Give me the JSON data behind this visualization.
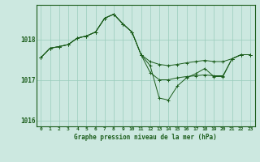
{
  "title": "Graphe pression niveau de la mer (hPa)",
  "background_color": "#cce8e0",
  "plot_bg_color": "#cce8e0",
  "grid_color": "#99ccbb",
  "line_color": "#1a5c1a",
  "xlim": [
    -0.5,
    23.5
  ],
  "ylim": [
    1015.85,
    1018.85
  ],
  "yticks": [
    1016,
    1017,
    1018
  ],
  "xticks": [
    0,
    1,
    2,
    3,
    4,
    5,
    6,
    7,
    8,
    9,
    10,
    11,
    12,
    13,
    14,
    15,
    16,
    17,
    18,
    19,
    20,
    21,
    22,
    23
  ],
  "series": [
    {
      "x": [
        0,
        1,
        2,
        3,
        4,
        5,
        6,
        7,
        8,
        9,
        10,
        11,
        12,
        13,
        14,
        15,
        16,
        17,
        18,
        19,
        20,
        21,
        22,
        23
      ],
      "y": [
        1017.55,
        1017.78,
        1017.82,
        1017.87,
        1018.03,
        1018.08,
        1018.18,
        1018.52,
        1018.62,
        1018.38,
        1018.18,
        1017.62,
        1017.35,
        1016.55,
        1016.5,
        1016.85,
        1017.05,
        1017.15,
        1017.28,
        1017.08,
        1017.08,
        1017.52,
        1017.62,
        1017.62
      ]
    },
    {
      "x": [
        0,
        1,
        2,
        3,
        4,
        5,
        6,
        7,
        8,
        9,
        10,
        11,
        12,
        13,
        14,
        15,
        16,
        17,
        18,
        19,
        20,
        21,
        22,
        23
      ],
      "y": [
        1017.55,
        1017.78,
        1017.82,
        1017.87,
        1018.03,
        1018.08,
        1018.18,
        1018.52,
        1018.62,
        1018.38,
        1018.18,
        1017.62,
        1017.18,
        1017.0,
        1017.0,
        1017.05,
        1017.08,
        1017.1,
        1017.12,
        1017.1,
        1017.1,
        1017.52,
        1017.62,
        1017.62
      ]
    },
    {
      "x": [
        0,
        1,
        2,
        3,
        4,
        5,
        6,
        7,
        8,
        9,
        10,
        11,
        12,
        13,
        14,
        15,
        16,
        17,
        18,
        19,
        20,
        21,
        22,
        23
      ],
      "y": [
        1017.55,
        1017.78,
        1017.82,
        1017.87,
        1018.03,
        1018.08,
        1018.18,
        1018.52,
        1018.62,
        1018.38,
        1018.18,
        1017.62,
        1017.45,
        1017.38,
        1017.35,
        1017.38,
        1017.42,
        1017.45,
        1017.48,
        1017.45,
        1017.45,
        1017.52,
        1017.62,
        1017.62
      ]
    }
  ]
}
